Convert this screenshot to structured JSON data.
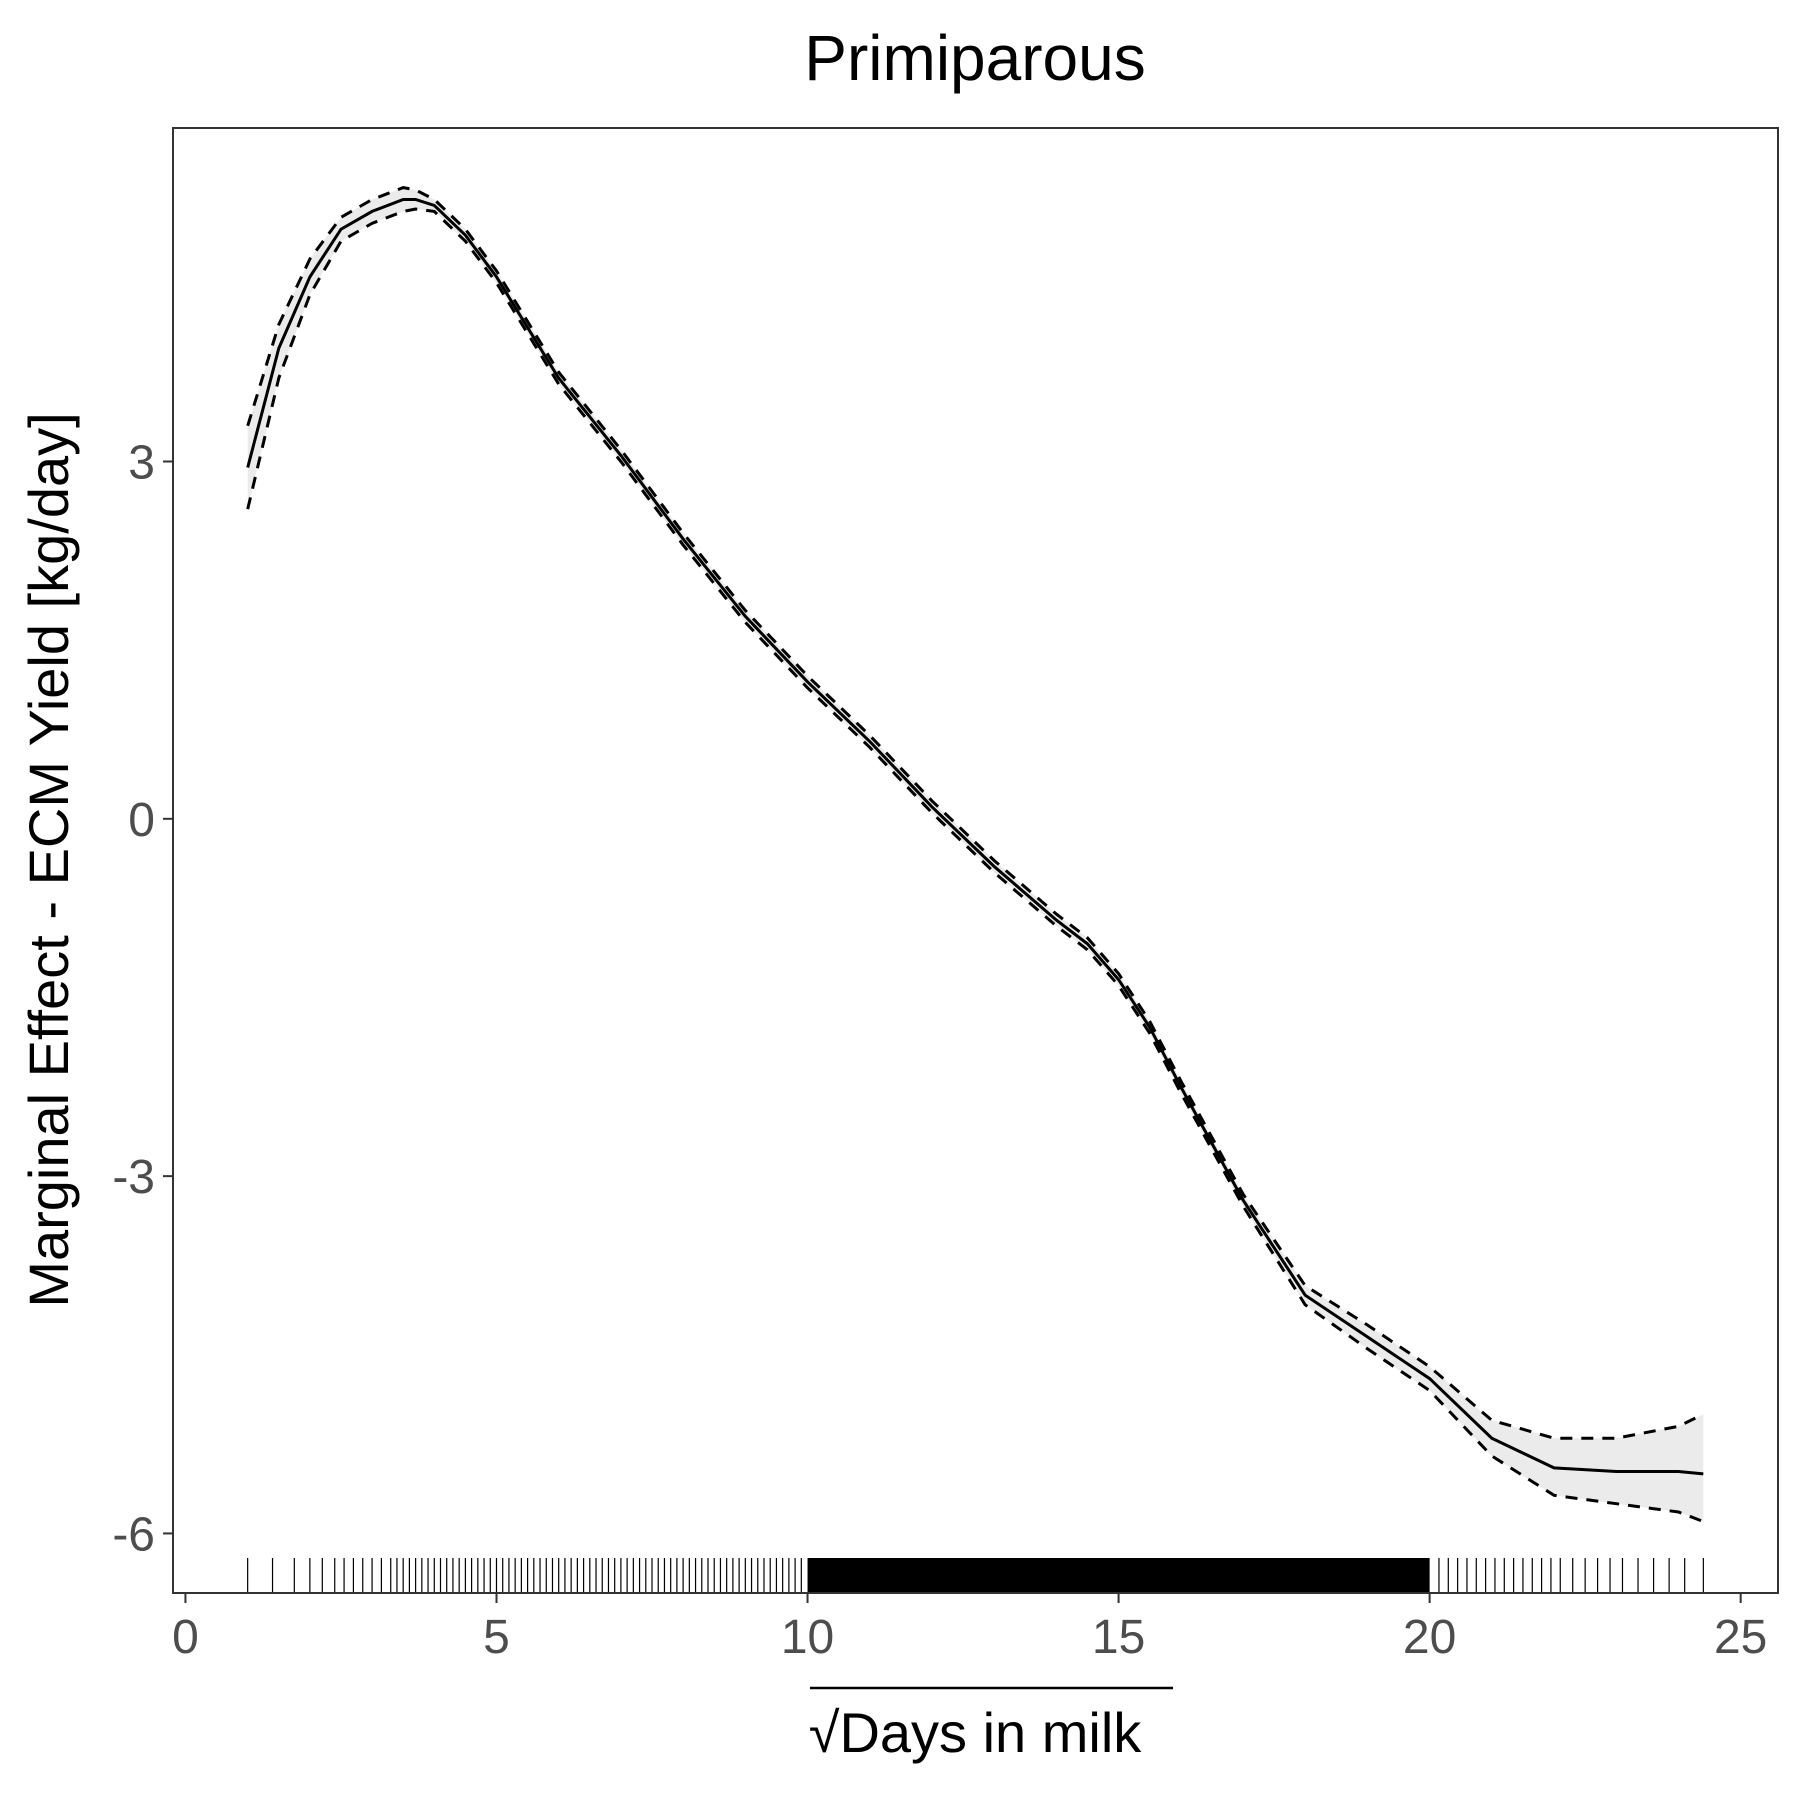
{
  "chart_data": {
    "type": "line",
    "title": "Primiparous",
    "xlabel": "Days in milk",
    "xlabel_prefix": "√",
    "ylabel": "Marginal Effect - ECM Yield [kg/day]",
    "xlim": [
      -0.2,
      25.6
    ],
    "ylim": [
      -6.5,
      5.8
    ],
    "x_ticks": [
      0,
      5,
      10,
      15,
      20,
      25
    ],
    "x_tick_labels": [
      "0",
      "5",
      "10",
      "15",
      "20",
      "25"
    ],
    "y_ticks": [
      3,
      0,
      -3,
      -6
    ],
    "y_tick_labels": [
      "3",
      "0",
      "-3",
      "-6"
    ],
    "grid": false,
    "legend": "none",
    "series": [
      {
        "role": "estimate",
        "style": "solid",
        "x": [
          1.0,
          1.5,
          2.0,
          2.5,
          3.0,
          3.5,
          3.7,
          4.0,
          4.5,
          5.0,
          6.0,
          7.0,
          8.0,
          9.0,
          10.0,
          11.0,
          12.0,
          13.0,
          14.0,
          14.5,
          15.0,
          15.5,
          16.0,
          17.0,
          18.0,
          19.0,
          20.0,
          21.0,
          22.0,
          23.0,
          24.0,
          24.4
        ],
        "values": [
          2.95,
          3.95,
          4.55,
          4.95,
          5.1,
          5.2,
          5.2,
          5.15,
          4.9,
          4.55,
          3.7,
          3.05,
          2.35,
          1.7,
          1.15,
          0.65,
          0.1,
          -0.4,
          -0.85,
          -1.05,
          -1.35,
          -1.75,
          -2.25,
          -3.2,
          -4.0,
          -4.35,
          -4.7,
          -5.2,
          -5.45,
          -5.48,
          -5.48,
          -5.5
        ]
      },
      {
        "role": "upper",
        "style": "dashed",
        "x": [
          1.0,
          1.5,
          2.0,
          2.5,
          3.0,
          3.5,
          3.7,
          4.0,
          4.5,
          5.0,
          6.0,
          7.0,
          8.0,
          9.0,
          10.0,
          11.0,
          12.0,
          13.0,
          14.0,
          14.5,
          15.0,
          15.5,
          16.0,
          17.0,
          18.0,
          19.0,
          20.0,
          21.0,
          22.0,
          23.0,
          24.0,
          24.4
        ],
        "values": [
          3.3,
          4.15,
          4.7,
          5.05,
          5.2,
          5.3,
          5.28,
          5.2,
          4.95,
          4.6,
          3.75,
          3.1,
          2.4,
          1.75,
          1.2,
          0.7,
          0.15,
          -0.35,
          -0.8,
          -1.0,
          -1.3,
          -1.7,
          -2.2,
          -3.15,
          -3.92,
          -4.25,
          -4.6,
          -5.05,
          -5.2,
          -5.2,
          -5.1,
          -5.0
        ]
      },
      {
        "role": "lower",
        "style": "dashed",
        "x": [
          1.0,
          1.5,
          2.0,
          2.5,
          3.0,
          3.5,
          3.7,
          4.0,
          4.5,
          5.0,
          6.0,
          7.0,
          8.0,
          9.0,
          10.0,
          11.0,
          12.0,
          13.0,
          14.0,
          14.5,
          15.0,
          15.5,
          16.0,
          17.0,
          18.0,
          19.0,
          20.0,
          21.0,
          22.0,
          23.0,
          24.0,
          24.4
        ],
        "values": [
          2.6,
          3.7,
          4.4,
          4.85,
          5.0,
          5.1,
          5.12,
          5.1,
          4.85,
          4.5,
          3.65,
          3.0,
          2.3,
          1.65,
          1.1,
          0.6,
          0.05,
          -0.45,
          -0.9,
          -1.1,
          -1.4,
          -1.8,
          -2.3,
          -3.25,
          -4.08,
          -4.45,
          -4.8,
          -5.35,
          -5.68,
          -5.75,
          -5.82,
          -5.9
        ]
      }
    ],
    "rug": {
      "sparse_x": [
        1.0,
        1.4,
        1.75,
        2.0,
        2.2,
        2.4,
        2.55,
        2.7,
        2.85,
        3.0,
        3.15,
        3.3,
        3.4,
        3.5,
        3.6,
        3.7,
        3.8,
        3.9,
        4.0,
        4.1,
        4.2,
        4.3,
        4.4,
        4.5,
        4.6,
        4.7,
        4.8,
        4.9,
        5.0,
        5.1,
        5.2,
        5.3,
        5.4,
        5.5,
        5.6,
        5.7,
        5.8,
        5.9,
        6.0,
        6.1,
        6.2,
        6.3,
        6.4,
        6.5,
        6.6,
        6.7,
        6.8,
        6.9,
        7.0,
        7.1,
        7.2,
        7.3,
        7.4,
        7.5,
        7.6,
        7.7,
        7.8,
        7.9,
        8.0,
        8.1,
        8.2,
        8.3,
        8.4,
        8.5,
        8.6,
        8.7,
        8.8,
        8.9,
        9.0,
        9.1,
        9.2,
        9.3,
        9.4,
        9.5,
        9.6,
        9.7,
        9.8,
        9.9,
        20.15,
        20.3,
        20.45,
        20.6,
        20.75,
        20.9,
        21.05,
        21.2,
        21.35,
        21.5,
        21.65,
        21.8,
        21.95,
        22.1,
        22.3,
        22.5,
        22.7,
        22.9,
        23.1,
        23.35,
        23.6,
        23.85,
        24.1,
        24.4
      ],
      "dense_range": [
        10.0,
        20.0
      ]
    }
  }
}
